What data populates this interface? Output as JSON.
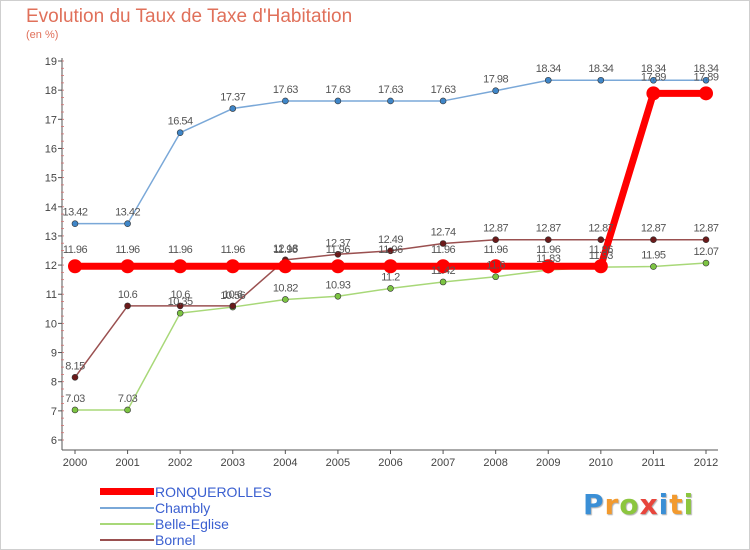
{
  "header": {
    "title": "Evolution du Taux de Taxe d'Habitation",
    "subtitle": "(en %)"
  },
  "logo": {
    "text": "Proxiti",
    "letters": [
      {
        "ch": "P",
        "color": "#3a8fd6"
      },
      {
        "ch": "r",
        "color": "#f29a2e"
      },
      {
        "ch": "o",
        "color": "#8cc63f"
      },
      {
        "ch": "x",
        "color": "#e8453c"
      },
      {
        "ch": "i",
        "color": "#3a8fd6"
      },
      {
        "ch": "t",
        "color": "#f29a2e"
      },
      {
        "ch": "i",
        "color": "#8cc63f"
      }
    ]
  },
  "chart_data": {
    "type": "line",
    "x": [
      "2000",
      "2001",
      "2002",
      "2003",
      "2004",
      "2005",
      "2006",
      "2007",
      "2008",
      "2009",
      "2010",
      "2011",
      "2012"
    ],
    "ylim": [
      6,
      19
    ],
    "yticks": [
      6,
      7,
      8,
      9,
      10,
      11,
      12,
      13,
      14,
      15,
      16,
      17,
      18,
      19
    ],
    "grid": false,
    "legend": "bottom-left",
    "series": [
      {
        "name": "RONQUEROLLES",
        "color": "#ff0000",
        "marker": "#ff0000",
        "width": 7,
        "radius": 7,
        "values": [
          11.96,
          11.96,
          11.96,
          11.96,
          11.96,
          11.96,
          11.96,
          11.96,
          11.96,
          11.96,
          11.96,
          17.89,
          17.89
        ],
        "labels": [
          "11.96",
          "11.96",
          "11.96",
          "11.96",
          "11.96",
          "11.96",
          "11.96",
          "11.96",
          "11.96",
          "11.96",
          "11.96",
          "17.89",
          "17.89"
        ]
      },
      {
        "name": "Chambly",
        "color": "#7aa8d8",
        "marker": "#3f86c8",
        "width": 1.5,
        "radius": 3,
        "values": [
          13.42,
          13.42,
          16.54,
          17.37,
          17.63,
          17.63,
          17.63,
          17.63,
          17.98,
          18.34,
          18.34,
          18.34,
          18.34
        ],
        "labels": [
          "13.42",
          "13.42",
          "16.54",
          "17.37",
          "17.63",
          "17.63",
          "17.63",
          "17.63",
          "17.98",
          "18.34",
          "18.34",
          "18.34",
          "18.34"
        ]
      },
      {
        "name": "Belle-Eglise",
        "color": "#a8d878",
        "marker": "#7cc442",
        "width": 1.5,
        "radius": 3,
        "values": [
          7.03,
          7.03,
          10.35,
          10.56,
          10.82,
          10.93,
          11.2,
          11.42,
          11.6,
          11.83,
          11.93,
          11.95,
          12.07
        ],
        "labels": [
          "7.03",
          "7.03",
          "10.35",
          "10.56",
          "10.82",
          "10.93",
          "11.2",
          "11.42",
          "11.6",
          "11.83",
          "11.93",
          "11.95",
          "12.07"
        ]
      },
      {
        "name": "Bornel",
        "color": "#9a5050",
        "marker": "#6b1a1a",
        "width": 1.5,
        "radius": 3,
        "values": [
          8.15,
          10.6,
          10.6,
          10.6,
          12.18,
          12.37,
          12.49,
          12.74,
          12.87,
          12.87,
          12.87,
          12.87,
          12.87
        ],
        "labels": [
          "8.15",
          "10.6",
          "10.6",
          "10.6",
          "12.18",
          "12.37",
          "12.49",
          "12.74",
          "12.87",
          "12.87",
          "12.87",
          "12.87",
          "12.87"
        ]
      }
    ]
  }
}
